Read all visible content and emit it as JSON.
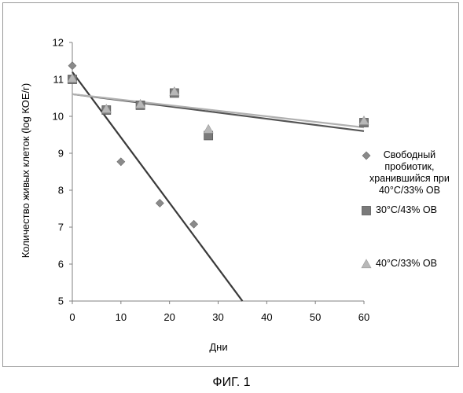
{
  "caption": "ФИГ. 1",
  "chart_data": {
    "type": "scatter",
    "title": "",
    "xlabel": "Дни",
    "ylabel": "Количество живых клеток (log КОЕ/г)",
    "xlim": [
      0,
      60
    ],
    "ylim": [
      5,
      12
    ],
    "xticks": [
      0,
      10,
      20,
      30,
      40,
      50,
      60
    ],
    "yticks": [
      5,
      6,
      7,
      8,
      9,
      10,
      11,
      12
    ],
    "grid": false,
    "legend_position": "right",
    "series": [
      {
        "name": "Свободный пробиотик, хранившийся при 40°C/33% ОВ",
        "name_lines": [
          "Свободный",
          "пробиотик,",
          "хранившийся при",
          "40°C/33% ОВ"
        ],
        "marker": "diamond",
        "color": "#8a8a8a",
        "x": [
          0,
          10,
          18,
          25
        ],
        "y": [
          11.37,
          8.77,
          7.65,
          7.08
        ],
        "trendline": {
          "x": [
            0,
            35
          ],
          "y": [
            11.2,
            5.0
          ]
        }
      },
      {
        "name": "30°C/43% ОВ",
        "marker": "square",
        "color": "#7a7a7a",
        "x": [
          0,
          7,
          14,
          21,
          28,
          60
        ],
        "y": [
          11.0,
          10.17,
          10.3,
          10.63,
          9.48,
          9.83
        ],
        "trendline": {
          "x": [
            0,
            60
          ],
          "y": [
            10.6,
            9.6
          ]
        }
      },
      {
        "name": "40°C/33% ОВ",
        "marker": "triangle",
        "color": "#b8b8b8",
        "x": [
          0,
          7,
          14,
          21,
          28,
          60
        ],
        "y": [
          11.03,
          10.2,
          10.33,
          10.67,
          9.65,
          9.88
        ],
        "trendline": {
          "x": [
            0,
            60
          ],
          "y": [
            10.6,
            9.7
          ]
        }
      }
    ]
  }
}
